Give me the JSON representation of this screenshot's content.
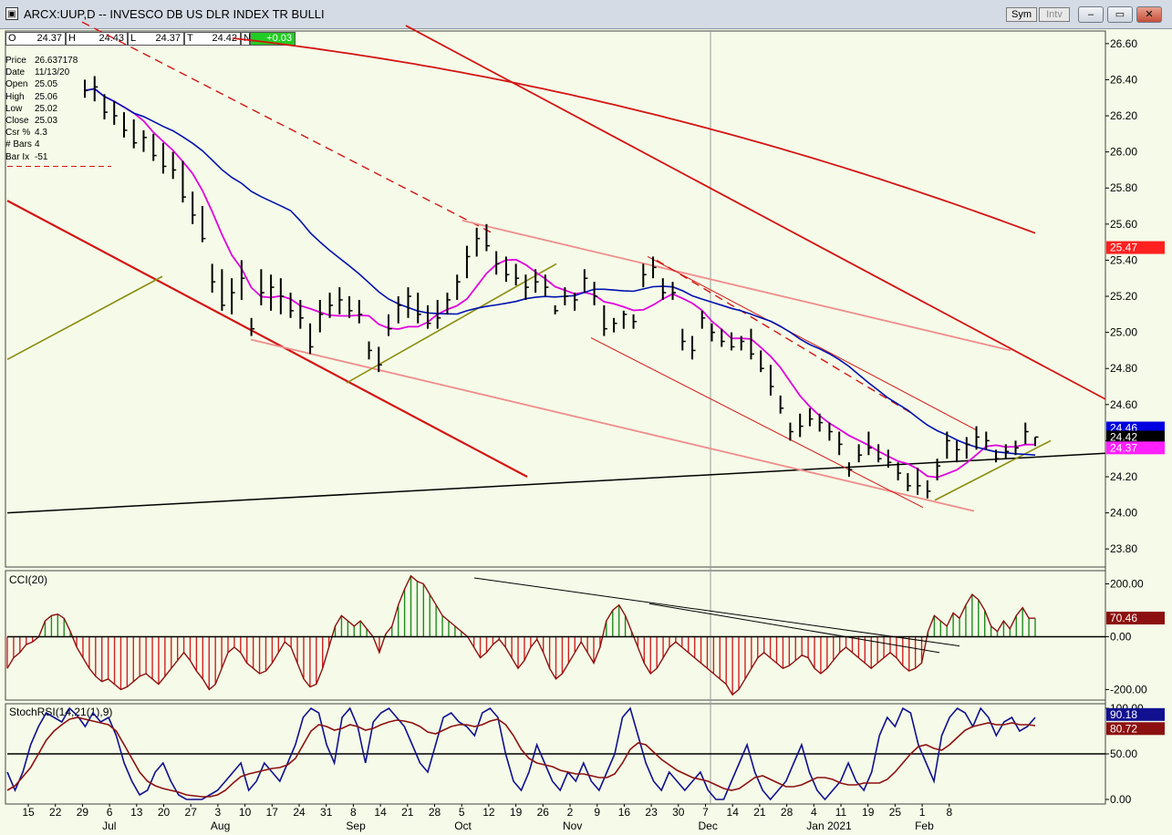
{
  "window": {
    "title": "ARCX:UUP,D -- INVESCO DB US DLR INDEX TR BULLI",
    "sym_label": "Sym",
    "intv_label": "Intv",
    "minimize": "–",
    "maximize": "▭",
    "close": "✕"
  },
  "ohlc": [
    {
      "label": "O",
      "value": "24.37"
    },
    {
      "label": "H",
      "value": "24.43"
    },
    {
      "label": "L",
      "value": "24.37"
    },
    {
      "label": "T",
      "value": "24.42"
    },
    {
      "label": "N",
      "value": "+0.03"
    }
  ],
  "cursor_info": [
    {
      "key": "Price",
      "value": "26.637178"
    },
    {
      "key": "Date",
      "value": "11/13/20"
    },
    {
      "key": "Open",
      "value": "25.05"
    },
    {
      "key": "High",
      "value": "25.06"
    },
    {
      "key": "Low",
      "value": "25.02"
    },
    {
      "key": "Close",
      "value": "25.03"
    },
    {
      "key": "Csr %",
      "value": "4.3"
    },
    {
      "key": "# Bars",
      "value": "4"
    },
    {
      "key": "Bar Ix",
      "value": "-51"
    }
  ],
  "colors": {
    "background": "#f5fbe8",
    "ma_short": "#e000e0",
    "ma_mid": "#0010b0",
    "ma_long": "#d41414",
    "trend_salmon": "#f08c8c",
    "trend_olive": "#8c8c10",
    "cci_up": "#1c8c1c",
    "cci_down": "#d42020",
    "stoch_k": "#101090",
    "stoch_d": "#8c1010"
  },
  "chart_data": [
    {
      "type": "ohlc",
      "panel": "price",
      "x_axis": {
        "day_ticks": [
          "15",
          "22",
          "29",
          "6",
          "13",
          "20",
          "27",
          "3",
          "10",
          "17",
          "24",
          "31",
          "8",
          "14",
          "21",
          "28",
          "5",
          "12",
          "19",
          "26",
          "2",
          "9",
          "16",
          "23",
          "30",
          "7",
          "14",
          "21",
          "28",
          "4",
          "11",
          "19",
          "25",
          "1",
          "8"
        ],
        "month_labels": [
          "Jul",
          "Aug",
          "Sep",
          "Oct",
          "Nov",
          "Dec",
          "Jan 2021",
          "Feb"
        ]
      },
      "y_axis": {
        "ticks": [
          "26.60",
          "26.40",
          "26.20",
          "26.00",
          "25.80",
          "25.60",
          "25.40",
          "25.20",
          "25.00",
          "24.80",
          "24.60",
          "24.40",
          "24.20",
          "24.00",
          "23.80"
        ],
        "range": [
          23.7,
          26.67
        ]
      },
      "last_value_labels": [
        {
          "value": "25.47",
          "color": "#ff2020",
          "text_color": "#ffffff"
        },
        {
          "value": "24.46",
          "color": "#0000e0",
          "text_color": "#ffffff"
        },
        {
          "value": "24.42",
          "color": "#000000",
          "text_color": "#ffffff"
        },
        {
          "value": "24.37",
          "color": "#ff20ff",
          "text_color": "#ffffff"
        }
      ],
      "bars": [
        {
          "h": 26.4,
          "l": 26.3,
          "c": 26.34
        },
        {
          "h": 26.42,
          "l": 26.28,
          "c": 26.36
        },
        {
          "h": 26.32,
          "l": 26.18,
          "c": 26.22
        },
        {
          "h": 26.28,
          "l": 26.15,
          "c": 26.2
        },
        {
          "h": 26.22,
          "l": 26.08,
          "c": 26.12
        },
        {
          "h": 26.18,
          "l": 26.02,
          "c": 26.05
        },
        {
          "h": 26.12,
          "l": 26.0,
          "c": 26.08
        },
        {
          "h": 26.1,
          "l": 25.95,
          "c": 25.98
        },
        {
          "h": 26.05,
          "l": 25.88,
          "c": 25.92
        },
        {
          "h": 26.0,
          "l": 25.85,
          "c": 25.9
        },
        {
          "h": 25.95,
          "l": 25.72,
          "c": 25.75
        },
        {
          "h": 25.78,
          "l": 25.6,
          "c": 25.65
        },
        {
          "h": 25.7,
          "l": 25.5,
          "c": 25.52
        },
        {
          "h": 25.38,
          "l": 25.22,
          "c": 25.28
        },
        {
          "h": 25.35,
          "l": 25.12,
          "c": 25.15
        },
        {
          "h": 25.3,
          "l": 25.1,
          "c": 25.22
        },
        {
          "h": 25.4,
          "l": 25.18,
          "c": 25.3
        },
        {
          "h": 25.08,
          "l": 24.98,
          "c": 25.02
        },
        {
          "h": 25.35,
          "l": 25.15,
          "c": 25.22
        },
        {
          "h": 25.32,
          "l": 25.12,
          "c": 25.25
        },
        {
          "h": 25.3,
          "l": 25.1,
          "c": 25.2
        },
        {
          "h": 25.22,
          "l": 25.08,
          "c": 25.12
        },
        {
          "h": 25.18,
          "l": 25.02,
          "c": 25.08
        },
        {
          "h": 25.05,
          "l": 24.88,
          "c": 24.92
        },
        {
          "h": 25.18,
          "l": 25.0,
          "c": 25.1
        },
        {
          "h": 25.22,
          "l": 25.08,
          "c": 25.15
        },
        {
          "h": 25.25,
          "l": 25.1,
          "c": 25.18
        },
        {
          "h": 25.2,
          "l": 25.08,
          "c": 25.12
        },
        {
          "h": 25.18,
          "l": 25.05,
          "c": 25.1
        },
        {
          "h": 24.95,
          "l": 24.85,
          "c": 24.9
        },
        {
          "h": 24.92,
          "l": 24.78,
          "c": 24.82
        },
        {
          "h": 25.1,
          "l": 24.98,
          "c": 25.02
        },
        {
          "h": 25.2,
          "l": 25.05,
          "c": 25.15
        },
        {
          "h": 25.25,
          "l": 25.08,
          "c": 25.2
        },
        {
          "h": 25.22,
          "l": 25.05,
          "c": 25.1
        },
        {
          "h": 25.15,
          "l": 25.02,
          "c": 25.05
        },
        {
          "h": 25.18,
          "l": 25.02,
          "c": 25.08
        },
        {
          "h": 25.22,
          "l": 25.1,
          "c": 25.18
        },
        {
          "h": 25.32,
          "l": 25.18,
          "c": 25.28
        },
        {
          "h": 25.48,
          "l": 25.3,
          "c": 25.42
        },
        {
          "h": 25.58,
          "l": 25.42,
          "c": 25.52
        },
        {
          "h": 25.6,
          "l": 25.45,
          "c": 25.48
        },
        {
          "h": 25.45,
          "l": 25.32,
          "c": 25.38
        },
        {
          "h": 25.42,
          "l": 25.28,
          "c": 25.32
        },
        {
          "h": 25.38,
          "l": 25.26,
          "c": 25.3
        },
        {
          "h": 25.32,
          "l": 25.18,
          "c": 25.25
        },
        {
          "h": 25.35,
          "l": 25.22,
          "c": 25.28
        },
        {
          "h": 25.32,
          "l": 25.2,
          "c": 25.25
        },
        {
          "h": 25.15,
          "l": 25.1,
          "c": 25.12
        },
        {
          "h": 25.25,
          "l": 25.15,
          "c": 25.2
        },
        {
          "h": 25.22,
          "l": 25.12,
          "c": 25.18
        },
        {
          "h": 25.35,
          "l": 25.22,
          "c": 25.3
        },
        {
          "h": 25.28,
          "l": 25.15,
          "c": 25.2
        },
        {
          "h": 25.15,
          "l": 24.98,
          "c": 25.02
        },
        {
          "h": 25.08,
          "l": 25.0,
          "c": 25.05
        },
        {
          "h": 25.12,
          "l": 25.02,
          "c": 25.1
        },
        {
          "h": 25.1,
          "l": 25.02,
          "c": 25.06
        },
        {
          "h": 25.38,
          "l": 25.25,
          "c": 25.32
        },
        {
          "h": 25.42,
          "l": 25.3,
          "c": 25.36
        },
        {
          "h": 25.3,
          "l": 25.18,
          "c": 25.22
        },
        {
          "h": 25.28,
          "l": 25.18,
          "c": 25.22
        },
        {
          "h": 25.02,
          "l": 24.9,
          "c": 24.95
        },
        {
          "h": 24.98,
          "l": 24.85,
          "c": 24.9
        },
        {
          "h": 25.12,
          "l": 25.02,
          "c": 25.08
        },
        {
          "h": 25.05,
          "l": 24.95,
          "c": 25.0
        },
        {
          "h": 25.02,
          "l": 24.92,
          "c": 24.95
        },
        {
          "h": 25.0,
          "l": 24.9,
          "c": 24.92
        },
        {
          "h": 24.98,
          "l": 24.9,
          "c": 24.95
        },
        {
          "h": 25.02,
          "l": 24.85,
          "c": 24.88
        },
        {
          "h": 24.9,
          "l": 24.78,
          "c": 24.8
        },
        {
          "h": 24.82,
          "l": 24.65,
          "c": 24.7
        },
        {
          "h": 24.65,
          "l": 24.55,
          "c": 24.58
        },
        {
          "h": 24.5,
          "l": 24.4,
          "c": 24.45
        },
        {
          "h": 24.55,
          "l": 24.42,
          "c": 24.48
        },
        {
          "h": 24.58,
          "l": 24.48,
          "c": 24.52
        },
        {
          "h": 24.55,
          "l": 24.45,
          "c": 24.5
        },
        {
          "h": 24.5,
          "l": 24.4,
          "c": 24.45
        },
        {
          "h": 24.45,
          "l": 24.32,
          "c": 24.38
        },
        {
          "h": 24.28,
          "l": 24.2,
          "c": 24.24
        },
        {
          "h": 24.38,
          "l": 24.28,
          "c": 24.32
        },
        {
          "h": 24.45,
          "l": 24.32,
          "c": 24.36
        },
        {
          "h": 24.38,
          "l": 24.28,
          "c": 24.3
        },
        {
          "h": 24.35,
          "l": 24.25,
          "c": 24.28
        },
        {
          "h": 24.28,
          "l": 24.18,
          "c": 24.22
        },
        {
          "h": 24.22,
          "l": 24.12,
          "c": 24.15
        },
        {
          "h": 24.25,
          "l": 24.1,
          "c": 24.15
        },
        {
          "h": 24.18,
          "l": 24.08,
          "c": 24.12
        },
        {
          "h": 24.3,
          "l": 24.18,
          "c": 24.26
        },
        {
          "h": 24.45,
          "l": 24.3,
          "c": 24.4
        },
        {
          "h": 24.4,
          "l": 24.28,
          "c": 24.35
        },
        {
          "h": 24.42,
          "l": 24.3,
          "c": 24.38
        },
        {
          "h": 24.48,
          "l": 24.35,
          "c": 24.42
        },
        {
          "h": 24.45,
          "l": 24.35,
          "c": 24.4
        },
        {
          "h": 24.35,
          "l": 24.28,
          "c": 24.3
        },
        {
          "h": 24.38,
          "l": 24.3,
          "c": 24.34
        },
        {
          "h": 24.4,
          "l": 24.32,
          "c": 24.36
        },
        {
          "h": 24.5,
          "l": 24.38,
          "c": 24.45
        },
        {
          "h": 24.42,
          "l": 24.37,
          "c": 24.42
        }
      ]
    },
    {
      "type": "bar",
      "panel": "cci",
      "title": "CCI(20)",
      "y_axis": {
        "ticks": [
          "200.00",
          "0.00",
          "-200.00"
        ],
        "range": [
          -240,
          250
        ]
      },
      "last_value_label": {
        "value": "70.46",
        "color": "#8c1010",
        "text_color": "#ffffff"
      },
      "values": [
        -120,
        -80,
        -60,
        -30,
        -20,
        0,
        60,
        80,
        85,
        70,
        20,
        -40,
        -80,
        -120,
        -150,
        -170,
        -160,
        -180,
        -200,
        -190,
        -170,
        -150,
        -140,
        -160,
        -180,
        -150,
        -120,
        -90,
        -60,
        -90,
        -130,
        -160,
        -200,
        -180,
        -120,
        -60,
        -40,
        -60,
        -100,
        -120,
        -140,
        -130,
        -100,
        -60,
        -20,
        -40,
        -100,
        -160,
        -190,
        -180,
        -120,
        -40,
        40,
        80,
        60,
        40,
        60,
        30,
        0,
        -60,
        10,
        40,
        120,
        180,
        230,
        210,
        200,
        160,
        120,
        80,
        60,
        40,
        20,
        0,
        -40,
        -80,
        -60,
        -30,
        -10,
        -40,
        -80,
        -120,
        -90,
        -40,
        -10,
        -60,
        -120,
        -160,
        -140,
        -100,
        -60,
        -20,
        -60,
        -100,
        -40,
        60,
        100,
        120,
        80,
        20,
        -40,
        -100,
        -140,
        -120,
        -80,
        -40,
        -20,
        -40,
        -60,
        -80,
        -100,
        -120,
        -140,
        -160,
        -180,
        -220,
        -200,
        -160,
        -120,
        -80,
        -60,
        -80,
        -100,
        -120,
        -110,
        -90,
        -70,
        -80,
        -120,
        -140,
        -120,
        -90,
        -60,
        -40,
        -60,
        -80,
        -100,
        -120,
        -100,
        -80,
        -60,
        -80,
        -110,
        -130,
        -120,
        -100,
        20,
        80,
        60,
        40,
        90,
        70,
        120,
        160,
        140,
        100,
        40,
        20,
        60,
        30,
        80,
        110,
        70,
        70
      ],
      "up_color": "#1c8c1c",
      "down_color": "#d42020"
    },
    {
      "type": "line",
      "panel": "stochrsi",
      "title": "StochRSI(14,21(1),9)",
      "y_axis": {
        "ticks": [
          "100.00",
          "50.00",
          "0.00"
        ],
        "range": [
          -5,
          105
        ]
      },
      "last_value_labels": [
        {
          "value": "90.18",
          "color": "#101090",
          "text_color": "#ffffff"
        },
        {
          "value": "80.72",
          "color": "#8c1010",
          "text_color": "#ffffff"
        }
      ],
      "series": [
        {
          "values": [
            30,
            10,
            30,
            60,
            80,
            95,
            90,
            85,
            100,
            92,
            80,
            95,
            85,
            90,
            70,
            40,
            20,
            5,
            10,
            30,
            40,
            20,
            5,
            0,
            0,
            0,
            5,
            10,
            20,
            30,
            40,
            10,
            20,
            40,
            30,
            20,
            40,
            60,
            90,
            100,
            95,
            60,
            40,
            90,
            100,
            80,
            40,
            85,
            95,
            100,
            90,
            80,
            60,
            40,
            30,
            60,
            90,
            95,
            85,
            80,
            70,
            95,
            100,
            90,
            50,
            20,
            10,
            30,
            60,
            40,
            20,
            10,
            30,
            20,
            40,
            20,
            10,
            30,
            50,
            90,
            100,
            70,
            40,
            20,
            10,
            30,
            20,
            10,
            20,
            30,
            10,
            0,
            0,
            20,
            40,
            60,
            30,
            10,
            0,
            10,
            20,
            40,
            60,
            30,
            10,
            0,
            10,
            20,
            40,
            20,
            10,
            30,
            70,
            90,
            80,
            100,
            95,
            60,
            40,
            20,
            70,
            90,
            100,
            95,
            80,
            100,
            90,
            70,
            85,
            90,
            75,
            80,
            90
          ],
          "color": "#101090"
        },
        {
          "values": [
            10,
            15,
            25,
            35,
            50,
            65,
            75,
            82,
            88,
            90,
            88,
            86,
            84,
            82,
            75,
            60,
            45,
            30,
            20,
            15,
            12,
            10,
            8,
            5,
            4,
            3,
            3,
            5,
            10,
            18,
            25,
            28,
            30,
            32,
            34,
            35,
            38,
            45,
            60,
            75,
            82,
            80,
            76,
            78,
            82,
            80,
            76,
            78,
            82,
            85,
            87,
            86,
            84,
            80,
            74,
            72,
            76,
            80,
            82,
            82,
            80,
            82,
            86,
            88,
            82,
            70,
            55,
            45,
            40,
            38,
            36,
            32,
            30,
            28,
            28,
            26,
            24,
            24,
            28,
            40,
            55,
            62,
            60,
            52,
            44,
            38,
            32,
            28,
            24,
            22,
            20,
            16,
            12,
            10,
            12,
            18,
            24,
            26,
            22,
            18,
            14,
            14,
            16,
            20,
            24,
            24,
            22,
            18,
            16,
            16,
            18,
            18,
            18,
            22,
            30,
            40,
            50,
            58,
            60,
            56,
            54,
            60,
            68,
            76,
            80,
            82,
            84,
            82,
            82,
            84,
            82,
            82,
            81
          ],
          "color": "#8c1010"
        }
      ]
    }
  ]
}
